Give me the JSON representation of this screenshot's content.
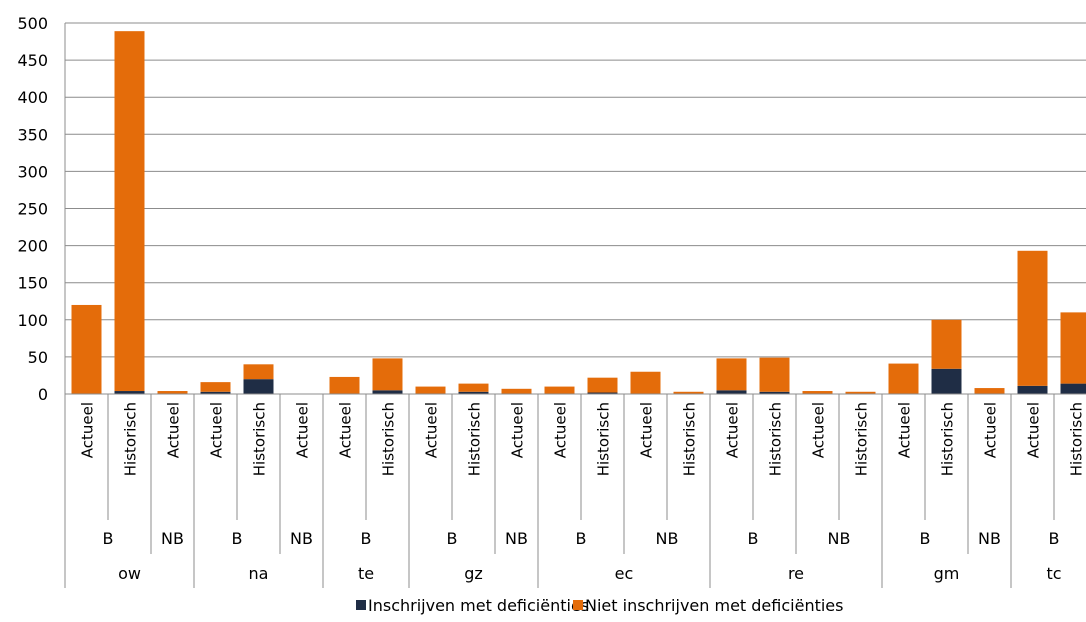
{
  "chart_data": {
    "type": "bar",
    "stacked": true,
    "title": "",
    "xlabel": "",
    "ylabel": "",
    "ylim": [
      0,
      500
    ],
    "yticks": [
      0,
      50,
      100,
      150,
      200,
      250,
      300,
      350,
      400,
      450,
      500
    ],
    "grid": true,
    "legend_position": "bottom",
    "categories": [
      {
        "label": "Actueel",
        "status": "B",
        "group": "ow"
      },
      {
        "label": "Historisch",
        "status": "B",
        "group": "ow"
      },
      {
        "label": "Actueel",
        "status": "NB",
        "group": "ow"
      },
      {
        "label": "Actueel",
        "status": "B",
        "group": "na"
      },
      {
        "label": "Historisch",
        "status": "B",
        "group": "na"
      },
      {
        "label": "Actueel",
        "status": "NB",
        "group": "na"
      },
      {
        "label": "Actueel",
        "status": "B",
        "group": "te"
      },
      {
        "label": "Historisch",
        "status": "B",
        "group": "te"
      },
      {
        "label": "Actueel",
        "status": "B",
        "group": "gz"
      },
      {
        "label": "Historisch",
        "status": "B",
        "group": "gz"
      },
      {
        "label": "Actueel",
        "status": "NB",
        "group": "gz"
      },
      {
        "label": "Actueel",
        "status": "B",
        "group": "ec"
      },
      {
        "label": "Historisch",
        "status": "B",
        "group": "ec"
      },
      {
        "label": "Actueel",
        "status": "NB",
        "group": "ec"
      },
      {
        "label": "Historisch",
        "status": "NB",
        "group": "ec"
      },
      {
        "label": "Actueel",
        "status": "B",
        "group": "re"
      },
      {
        "label": "Historisch",
        "status": "B",
        "group": "re"
      },
      {
        "label": "Actueel",
        "status": "NB",
        "group": "re"
      },
      {
        "label": "Historisch",
        "status": "NB",
        "group": "re"
      },
      {
        "label": "Actueel",
        "status": "B",
        "group": "gm"
      },
      {
        "label": "Historisch",
        "status": "B",
        "group": "gm"
      },
      {
        "label": "Actueel",
        "status": "NB",
        "group": "gm"
      },
      {
        "label": "Actueel",
        "status": "B",
        "group": "tc"
      },
      {
        "label": "Historisch",
        "status": "B",
        "group": "tc"
      }
    ],
    "series": [
      {
        "name": "Inschrijven met deficiënties",
        "color": "#1f2d45",
        "values": [
          0,
          4,
          0,
          3,
          20,
          0,
          0,
          5,
          0,
          3,
          0,
          0,
          2,
          0,
          0,
          5,
          3,
          0,
          0,
          0,
          34,
          0,
          11,
          14
        ]
      },
      {
        "name": "Niet inschrijven met deficiënties",
        "color": "#e46c0a",
        "values": [
          120,
          485,
          4,
          13,
          20,
          0,
          23,
          43,
          10,
          11,
          7,
          10,
          20,
          30,
          3,
          43,
          46,
          4,
          3,
          41,
          66,
          8,
          182,
          96
        ]
      }
    ]
  }
}
